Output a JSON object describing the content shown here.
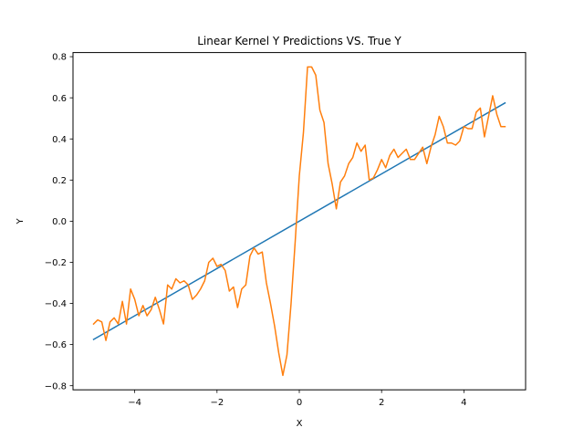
{
  "chart_data": {
    "type": "line",
    "title": "Linear Kernel Y Predictions VS. True Y",
    "xlabel": "X",
    "ylabel": "Y",
    "xlim": [
      -5.5,
      5.5
    ],
    "ylim": [
      -0.82,
      0.82
    ],
    "xticks": [
      -4,
      -2,
      0,
      2,
      4
    ],
    "yticks": [
      -0.8,
      -0.6,
      -0.4,
      -0.2,
      0.0,
      0.2,
      0.4,
      0.6,
      0.8
    ],
    "xtick_labels": [
      "−4",
      "−2",
      "0",
      "2",
      "4"
    ],
    "ytick_labels": [
      "−0.8",
      "−0.6",
      "−0.4",
      "−0.2",
      "0.0",
      "0.2",
      "0.4",
      "0.6",
      "0.8"
    ],
    "grid": false,
    "series": [
      {
        "color": "#1f77b4",
        "x": [
          -5.0,
          5.0
        ],
        "y": [
          -0.575,
          0.575
        ]
      },
      {
        "color": "#ff7f0e",
        "x": [
          -5.0,
          -4.9,
          -4.8,
          -4.7,
          -4.6,
          -4.5,
          -4.4,
          -4.3,
          -4.2,
          -4.1,
          -4.0,
          -3.9,
          -3.8,
          -3.7,
          -3.6,
          -3.5,
          -3.4,
          -3.3,
          -3.2,
          -3.1,
          -3.0,
          -2.9,
          -2.8,
          -2.7,
          -2.6,
          -2.5,
          -2.4,
          -2.3,
          -2.2,
          -2.1,
          -2.0,
          -1.9,
          -1.8,
          -1.7,
          -1.6,
          -1.5,
          -1.4,
          -1.3,
          -1.2,
          -1.1,
          -1.0,
          -0.9,
          -0.8,
          -0.7,
          -0.6,
          -0.5,
          -0.4,
          -0.3,
          -0.2,
          -0.1,
          0.0,
          0.1,
          0.2,
          0.3,
          0.4,
          0.5,
          0.6,
          0.7,
          0.8,
          0.9,
          1.0,
          1.1,
          1.2,
          1.3,
          1.4,
          1.5,
          1.6,
          1.7,
          1.8,
          1.9,
          2.0,
          2.1,
          2.2,
          2.3,
          2.4,
          2.5,
          2.6,
          2.7,
          2.8,
          2.9,
          3.0,
          3.1,
          3.2,
          3.3,
          3.4,
          3.5,
          3.6,
          3.7,
          3.8,
          3.9,
          4.0,
          4.1,
          4.2,
          4.3,
          4.4,
          4.5,
          4.6,
          4.7,
          4.8,
          4.9,
          5.0
        ],
        "y": [
          -0.5,
          -0.48,
          -0.49,
          -0.58,
          -0.49,
          -0.47,
          -0.5,
          -0.39,
          -0.5,
          -0.33,
          -0.38,
          -0.46,
          -0.41,
          -0.46,
          -0.43,
          -0.37,
          -0.43,
          -0.5,
          -0.31,
          -0.33,
          -0.28,
          -0.3,
          -0.29,
          -0.31,
          -0.38,
          -0.36,
          -0.33,
          -0.29,
          -0.2,
          -0.18,
          -0.22,
          -0.21,
          -0.24,
          -0.34,
          -0.32,
          -0.42,
          -0.33,
          -0.31,
          -0.17,
          -0.13,
          -0.16,
          -0.15,
          -0.3,
          -0.4,
          -0.51,
          -0.64,
          -0.75,
          -0.65,
          -0.4,
          -0.1,
          0.22,
          0.43,
          0.75,
          0.75,
          0.71,
          0.54,
          0.48,
          0.28,
          0.18,
          0.06,
          0.19,
          0.22,
          0.28,
          0.31,
          0.38,
          0.34,
          0.37,
          0.2,
          0.21,
          0.25,
          0.3,
          0.26,
          0.32,
          0.35,
          0.31,
          0.33,
          0.35,
          0.3,
          0.3,
          0.33,
          0.36,
          0.28,
          0.36,
          0.42,
          0.51,
          0.46,
          0.38,
          0.38,
          0.37,
          0.39,
          0.46,
          0.45,
          0.45,
          0.53,
          0.55,
          0.41,
          0.51,
          0.61,
          0.52,
          0.46,
          0.46
        ]
      }
    ]
  }
}
